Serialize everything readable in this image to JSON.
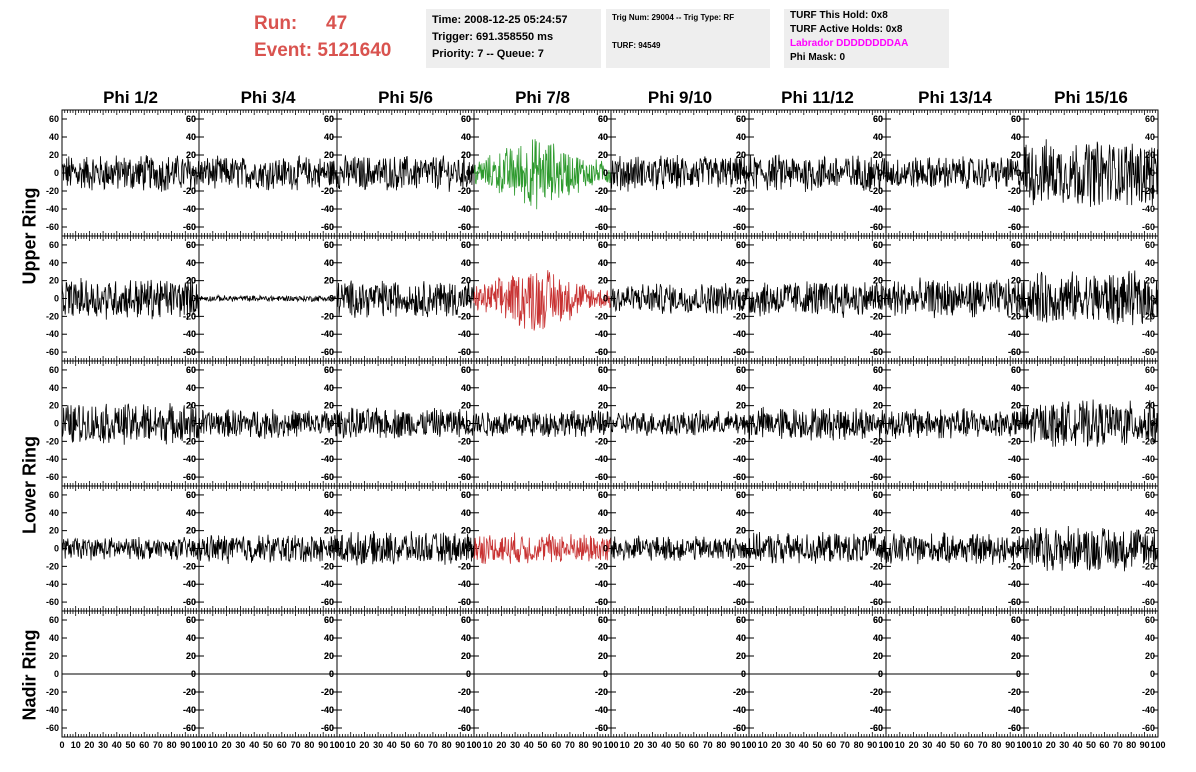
{
  "header": {
    "run_label": "Run:",
    "run_value": "47",
    "event_label": "Event:",
    "event_value": "5121640",
    "time": "Time: 2008-12-25 05:24:57",
    "trigger": "Trigger: 691.358550 ms",
    "priority": "Priority: 7 -- Queue: 7",
    "trig_num": "Trig Num: 29004 -- Trig Type: RF",
    "turf": "TURF: 94549",
    "turf_this_hold": "TURF This Hold: 0x8",
    "turf_active_holds": "TURF Active Holds: 0x8",
    "labrador": "Labrador DDDDDDDDAA",
    "phi_mask": "Phi Mask: 0"
  },
  "columns": [
    "Phi 1/2",
    "Phi 3/4",
    "Phi 5/6",
    "Phi 7/8",
    "Phi 9/10",
    "Phi 11/12",
    "Phi 13/14",
    "Phi 15/16"
  ],
  "rings": [
    "Upper Ring",
    "Lower Ring",
    "Nadir Ring"
  ],
  "axes": {
    "y_ticks": [
      "60",
      "40",
      "20",
      "0",
      "-20",
      "-40",
      "-60"
    ],
    "y_range": [
      -70,
      70
    ],
    "x_ticks": [
      "0",
      "10",
      "20",
      "30",
      "40",
      "50",
      "60",
      "70",
      "80",
      "90",
      "100"
    ],
    "x_range": [
      0,
      100
    ]
  },
  "colors": {
    "title_red": "#d9534f",
    "labrador_magenta": "#ff00ff",
    "trace_default": "#000000",
    "trace_green": "#2e9a2e",
    "trace_red": "#c83232",
    "box_background": "#eeeeee"
  },
  "chart_data": {
    "type": "line",
    "rows": [
      {
        "ring": "Upper Ring",
        "amplitudes": [
          18,
          16,
          17,
          30,
          17,
          18,
          16,
          32
        ],
        "colors": [
          "#000000",
          "#000000",
          "#000000",
          "#2e9a2e",
          "#000000",
          "#000000",
          "#000000",
          "#000000"
        ]
      },
      {
        "ring": "Upper Ring",
        "amplitudes": [
          20,
          3,
          18,
          28,
          15,
          18,
          19,
          26
        ],
        "colors": [
          "#000000",
          "#000000",
          "#000000",
          "#c83232",
          "#000000",
          "#000000",
          "#000000",
          "#000000"
        ]
      },
      {
        "ring": "Lower Ring",
        "amplitudes": [
          20,
          14,
          15,
          13,
          12,
          16,
          15,
          22
        ],
        "colors": [
          "#000000",
          "#000000",
          "#000000",
          "#000000",
          "#000000",
          "#000000",
          "#000000",
          "#000000"
        ]
      },
      {
        "ring": "Lower Ring",
        "amplitudes": [
          11,
          14,
          16,
          15,
          12,
          15,
          15,
          22
        ],
        "colors": [
          "#000000",
          "#000000",
          "#000000",
          "#c83232",
          "#000000",
          "#000000",
          "#000000",
          "#000000"
        ]
      },
      {
        "ring": "Nadir Ring",
        "amplitudes": [
          0,
          0,
          0,
          0,
          0,
          0,
          0,
          null
        ],
        "colors": [
          "#000000",
          "#000000",
          "#000000",
          "#000000",
          "#000000",
          "#000000",
          "#000000",
          "#000000"
        ]
      }
    ]
  }
}
